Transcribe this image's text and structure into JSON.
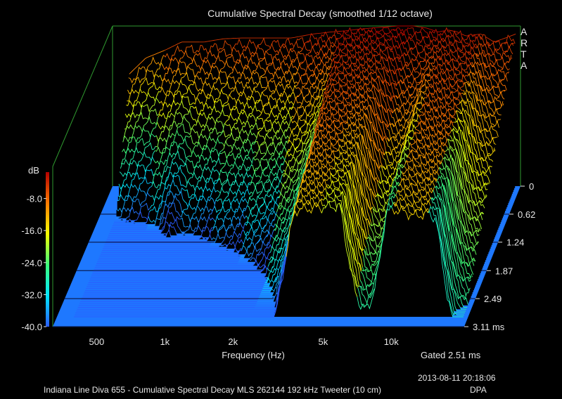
{
  "chart_data": {
    "type": "waterfall",
    "title": "Cumulative Spectral Decay (smoothed 1/12 octave)",
    "xlabel": "Frequency (Hz)",
    "zlabel": "dB",
    "brand": [
      "A",
      "R",
      "T",
      "A"
    ],
    "x_scale": "log",
    "x_ticks": [
      {
        "value": 500,
        "label": "500"
      },
      {
        "value": 1000,
        "label": "1k"
      },
      {
        "value": 2000,
        "label": "2k"
      },
      {
        "value": 5000,
        "label": "5k"
      },
      {
        "value": 10000,
        "label": "10k"
      }
    ],
    "z_ticks": [
      {
        "value": -8,
        "label": "-8.0"
      },
      {
        "value": -16,
        "label": "-16.0"
      },
      {
        "value": -24,
        "label": "-24.0"
      },
      {
        "value": -32,
        "label": "-32.0"
      },
      {
        "value": -40,
        "label": "-40.0"
      }
    ],
    "zlim": [
      -40,
      0
    ],
    "time_ticks": [
      {
        "value": 0,
        "label": "0"
      },
      {
        "value": 0.62,
        "label": "0.62"
      },
      {
        "value": 1.24,
        "label": "1.24"
      },
      {
        "value": 1.87,
        "label": "1.87"
      },
      {
        "value": 2.49,
        "label": "2.49"
      },
      {
        "value": 3.11,
        "label": "3.11 ms"
      }
    ],
    "time_range_ms": [
      0,
      3.11
    ],
    "gate_label": "Gated 2.51 ms",
    "timestamp": "2013-08-11  20:18:06",
    "caption": "Indiana Line Diva 655 - Cumulative Spectral Decay MLS 262144 192 kHz Tweeter (10 cm)",
    "caption_tag": "DPA",
    "colors": {
      "floor": "#1e78ff",
      "frame": "#2f9a2f",
      "text": "#e6e6e6"
    },
    "slice_count": 70,
    "initial_response": {
      "freq_hz": [
        380,
        450,
        550,
        650,
        700,
        760,
        820,
        900,
        1000,
        1200,
        1500,
        2000,
        2500,
        3000,
        3500,
        4000,
        5000,
        6000,
        7000,
        8000,
        9000,
        10000,
        11000,
        12000,
        14000,
        16000,
        18000,
        20000
      ],
      "level_db": [
        -12,
        -8,
        -6,
        -4,
        -4,
        -4,
        -4,
        -3.6,
        -3.2,
        -3.0,
        -3.0,
        -3.0,
        -2.0,
        -1.5,
        -1.2,
        -0.8,
        -0.3,
        0,
        0,
        -0.5,
        -1.5,
        -1.0,
        -1.5,
        -2.5,
        -2.0,
        -4.0,
        -3.0,
        -2.0
      ]
    }
  }
}
